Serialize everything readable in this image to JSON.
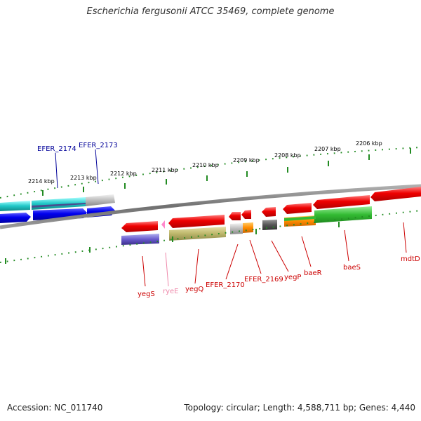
{
  "title": "Escherichia fergusonii ATCC 35469, complete genome",
  "footer": {
    "accession": "Accession: NC_011740",
    "stats": "Topology: circular; Length: 4,588,711 bp; Genes: 4,440"
  },
  "colors": {
    "backbone": "#808080",
    "forward_gene": "#0000ff",
    "reverse_gene": "#ff0000",
    "tick": "#228b22",
    "upper_label": "#000099",
    "lower_label": "#cc0000",
    "rna_label": "#ee88aa"
  },
  "scale_labels": [
    "2214 kbp",
    "2213 kbp",
    "2212 kbp",
    "2211 kbp",
    "2210 kbp",
    "2209 kbp",
    "2208 kbp",
    "2207 kbp",
    "2206 kbp"
  ],
  "upper_gene_labels": [
    "EFER_2174",
    "EFER_2173"
  ],
  "lower_gene_labels": [
    "yegS",
    "ryeE",
    "yegQ",
    "EFER_2170",
    "EFER_2169",
    "yegP",
    "baeR",
    "baeS",
    "mdtD"
  ]
}
